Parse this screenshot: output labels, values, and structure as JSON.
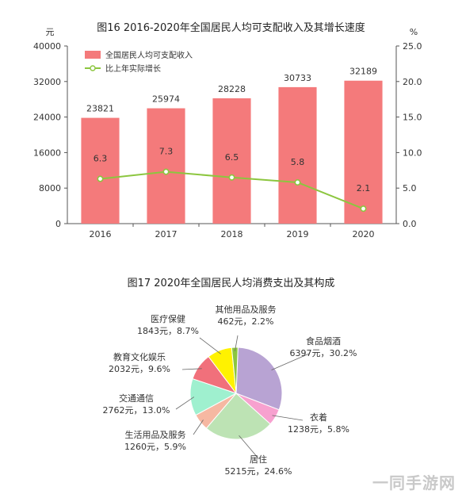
{
  "chart_data": [
    {
      "type": "bar",
      "title": "图16   2016-2020年全国居民人均可支配收入及其增长速度",
      "categories": [
        "2016",
        "2017",
        "2018",
        "2019",
        "2020"
      ],
      "y_left_unit": "元",
      "y_right_unit": "%",
      "ylim_left": [
        0,
        40000
      ],
      "ylim_right": [
        0,
        25
      ],
      "y_left_ticks": [
        "0",
        "8000",
        "16000",
        "24000",
        "32000",
        "40000"
      ],
      "y_right_ticks": [
        "0.0",
        "5.0",
        "10.0",
        "15.0",
        "20.0",
        "25.0"
      ],
      "bar_color": "#f47a7b",
      "line_color": "#8cc63f",
      "series": [
        {
          "name": "全国居民人均可支配收入",
          "kind": "bar",
          "axis": "left",
          "values": [
            23821,
            25974,
            28228,
            30733,
            32189
          ],
          "labels": [
            "23821",
            "25974",
            "28228",
            "30733",
            "32189"
          ]
        },
        {
          "name": "比上年实际增长",
          "kind": "line",
          "axis": "right",
          "values": [
            6.3,
            7.3,
            6.5,
            5.8,
            2.1
          ],
          "labels": [
            "6.3",
            "7.3",
            "6.5",
            "5.8",
            "2.1"
          ]
        }
      ]
    },
    {
      "type": "pie",
      "title": "图17   2020年全国居民人均消费支出及其构成",
      "slices": [
        {
          "name": "食品烟酒",
          "amount": "6397元，30.2%",
          "value": 30.2,
          "color": "#b8a3d3"
        },
        {
          "name": "衣着",
          "amount": "1238元，5.8%",
          "value": 5.8,
          "color": "#f7a1cf"
        },
        {
          "name": "居住",
          "amount": "5215元，24.6%",
          "value": 24.6,
          "color": "#bde3b4"
        },
        {
          "name": "生活用品及服务",
          "amount": "1260元，5.9%",
          "value": 5.9,
          "color": "#f6b8a2"
        },
        {
          "name": "交通通信",
          "amount": "2762元，13.0%",
          "value": 13.0,
          "color": "#9ff0cf"
        },
        {
          "name": "教育文化娱乐",
          "amount": "2032元，9.6%",
          "value": 9.6,
          "color": "#f1707b"
        },
        {
          "name": "医疗保健",
          "amount": "1843元，8.7%",
          "value": 8.7,
          "color": "#fff200"
        },
        {
          "name": "其他用品及服务",
          "amount": "462元，2.2%",
          "value": 2.2,
          "color": "#8cc63f"
        }
      ]
    }
  ],
  "watermark": "一同手游网"
}
